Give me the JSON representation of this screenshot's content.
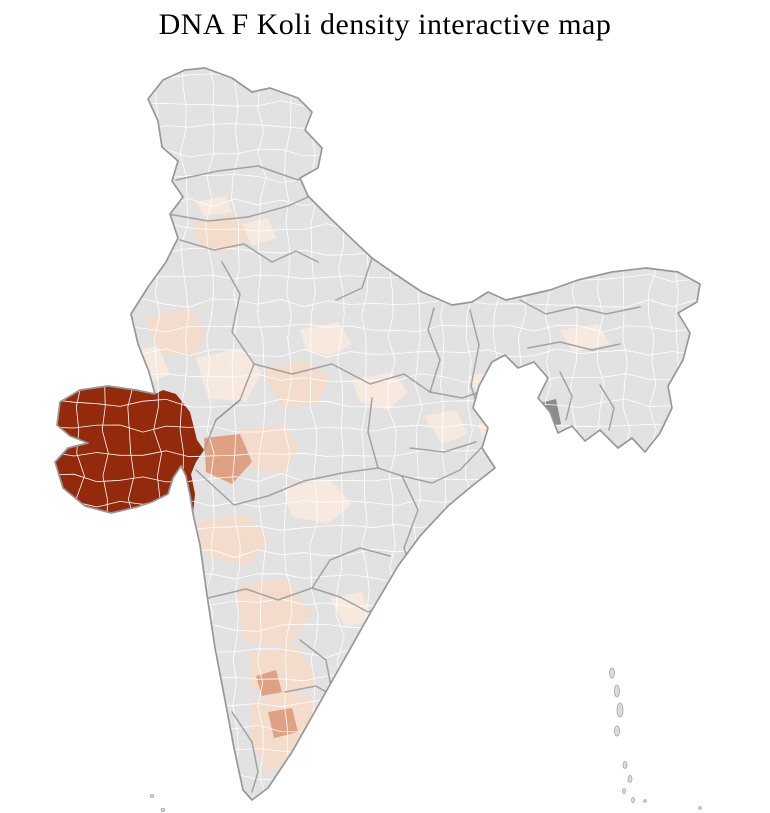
{
  "title": "DNA F Koli density interactive map",
  "map": {
    "region": "India",
    "type": "choropleth",
    "colors": {
      "background": "#ffffff",
      "title": "#000000",
      "land": "#e2e2e2",
      "district_border": "#ffffff",
      "state_border": "#979797",
      "high": "#932a0b",
      "medium": "#dfa183",
      "low": "#f3dccb",
      "very_low": "#f8e9de",
      "dark_gray_district": "#8c8c8c",
      "island_fill": "#dcdcdc",
      "island_border": "#a3a3a3"
    },
    "density_levels": [
      {
        "level": "high",
        "color": "#932a0b"
      },
      {
        "level": "medium",
        "color": "#dfa183"
      },
      {
        "level": "low",
        "color": "#f3dccb"
      },
      {
        "level": "very-low",
        "color": "#f8e9de"
      },
      {
        "level": "none",
        "color": "#e2e2e2"
      }
    ]
  }
}
